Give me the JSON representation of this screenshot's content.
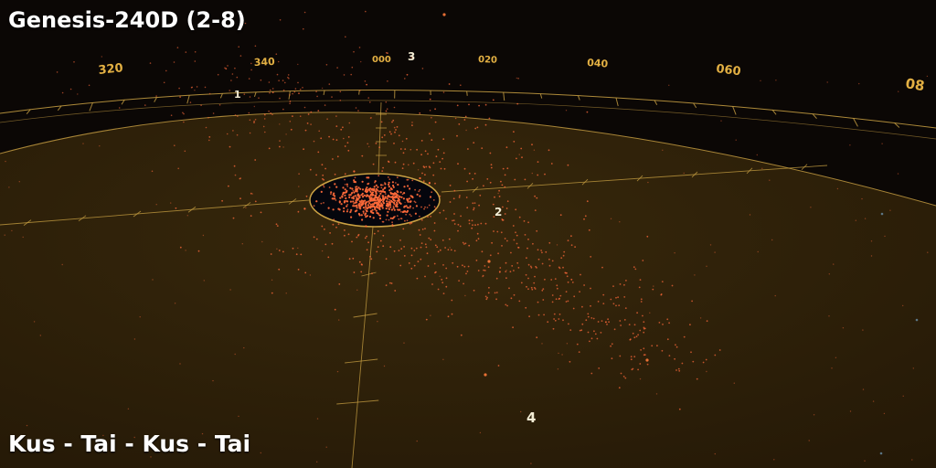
{
  "hud": {
    "title": "Genesis-240D (2-8)",
    "route": "Kus - Tai - Kus - Tai"
  },
  "heading_labels": [
    "320",
    "340",
    "000",
    "020",
    "040",
    "060",
    "08"
  ],
  "markers": [
    "1",
    "3",
    "2",
    "4"
  ],
  "colors": {
    "background": "#0b0705",
    "plane": "#2a1e08",
    "grid": "#caa143",
    "stars": "#ff6a3a",
    "text": "#ffffff"
  }
}
